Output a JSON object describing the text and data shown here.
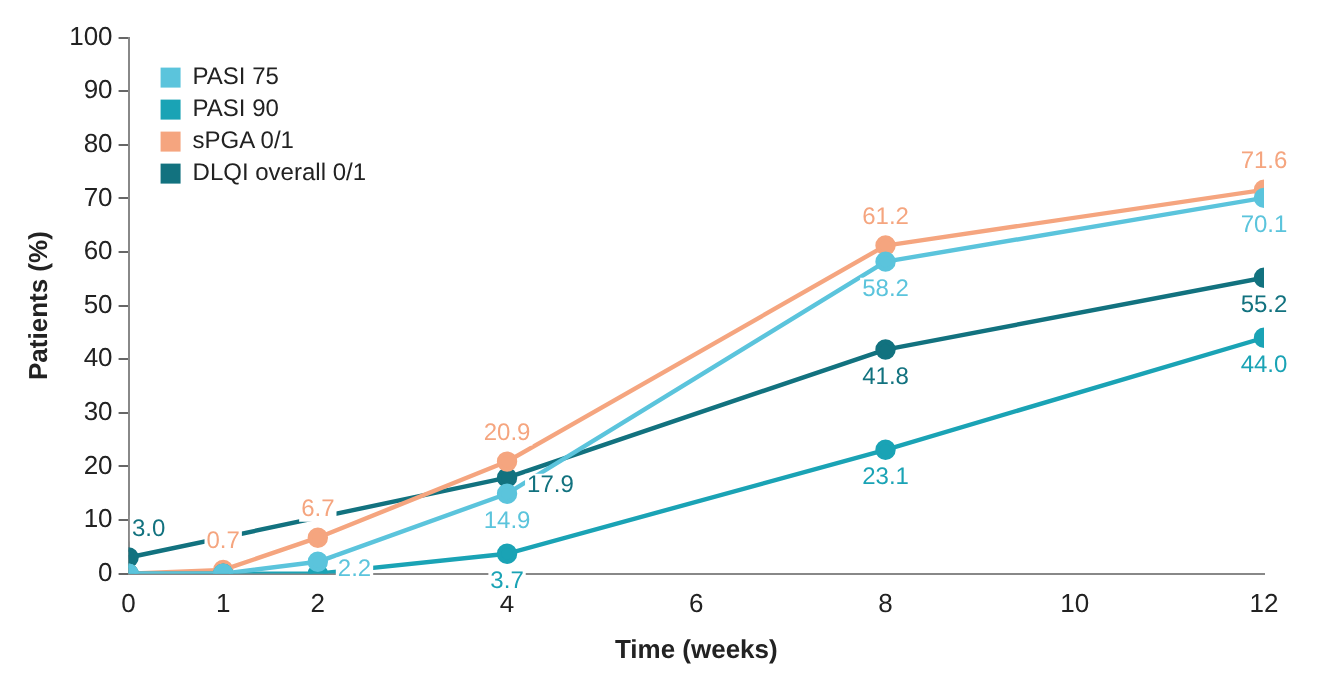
{
  "chart_data": {
    "type": "line",
    "xlabel": "Time (weeks)",
    "ylabel": "Patients (%)",
    "x": [
      0,
      1,
      2,
      4,
      8,
      12
    ],
    "xlim": [
      0,
      12
    ],
    "xticks": [
      0,
      1,
      2,
      4,
      6,
      8,
      10,
      12
    ],
    "ylim": [
      0,
      100
    ],
    "yticks": [
      0,
      10,
      20,
      30,
      40,
      50,
      60,
      70,
      80,
      90,
      100
    ],
    "grid": false,
    "legend": "top left",
    "marker": "circle",
    "line_style": "solid",
    "series": [
      {
        "name": "PASI 75",
        "color": "#5bc4dc",
        "values": [
          0,
          0,
          2.2,
          14.9,
          58.2,
          70.1
        ],
        "value_labels": [
          null,
          null,
          "2.2",
          "14.9",
          "58.2",
          "70.1"
        ]
      },
      {
        "name": "PASI 90",
        "color": "#1aa3b5",
        "values": [
          0,
          0,
          0,
          3.7,
          23.1,
          44.0
        ],
        "value_labels": [
          null,
          null,
          null,
          "3.7",
          "23.1",
          "44.0"
        ]
      },
      {
        "name": "sPGA 0/1",
        "color": "#f5a57f",
        "values": [
          0,
          0.7,
          6.7,
          20.9,
          61.2,
          71.6
        ],
        "value_labels": [
          null,
          "0.7",
          "6.7",
          "20.9",
          "61.2",
          "71.6"
        ]
      },
      {
        "name": "DLQI overall 0/1",
        "color": "#12727f",
        "x": [
          0,
          4,
          8,
          12
        ],
        "values": [
          3.0,
          17.9,
          41.8,
          55.2
        ],
        "value_labels": [
          "3.0",
          "17.9",
          "41.8",
          "55.2"
        ]
      }
    ]
  }
}
